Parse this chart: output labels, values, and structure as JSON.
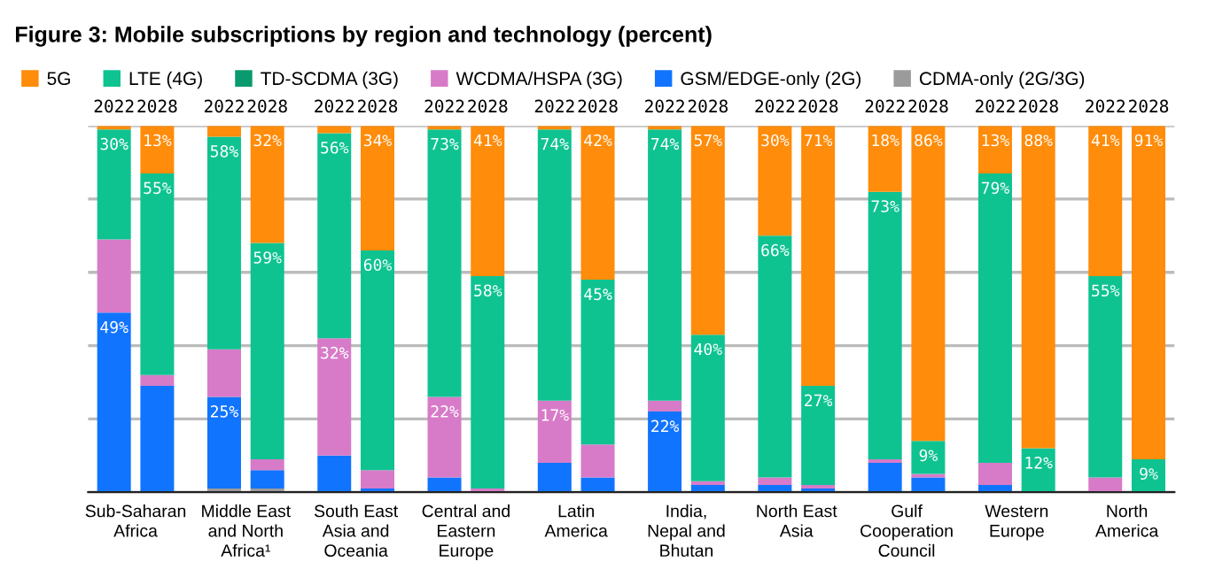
{
  "chart_data": {
    "type": "bar",
    "stacked": true,
    "title": "Figure 3: Mobile subscriptions by region and technology (percent)",
    "categories": [
      "2022",
      "2028",
      "2022",
      "2028",
      "2022",
      "2028",
      "2022",
      "2028",
      "2022",
      "2028",
      "2022",
      "2028",
      "2022",
      "2028",
      "2022",
      "2028",
      "2022",
      "2028",
      "2022",
      "2028"
    ],
    "annotations": [
      "Sub-Saharan\nAfrica",
      "Middle East\nand North\nAfrica¹",
      "South East\nAsia and\nOceania",
      "Central and\nEastern\nEurope",
      "Latin\nAmerica",
      "India,\nNepal and\nBhutan",
      "North East\nAsia",
      "Gulf\nCooperation\nCouncil",
      "Western\nEurope",
      "North\nAmerica"
    ],
    "series": [
      {
        "name": "CDMA-only (2G/3G)",
        "color": "#9b9b9b",
        "values": [
          0,
          0,
          1,
          1,
          0,
          0,
          0,
          0,
          0,
          0,
          0,
          0,
          0,
          0,
          0,
          0,
          0,
          0,
          0,
          0
        ]
      },
      {
        "name": "GSM/EDGE-only (2G)",
        "color": "#1174ff",
        "values": [
          49,
          29,
          25,
          5,
          10,
          1,
          4,
          0,
          8,
          4,
          22,
          2,
          2,
          1,
          8,
          4,
          2,
          0,
          0,
          0
        ],
        "value_labels": [
          "49%",
          null,
          "25%",
          null,
          null,
          null,
          null,
          null,
          null,
          null,
          "22%",
          null,
          null,
          null,
          null,
          null,
          null,
          null,
          null,
          null
        ]
      },
      {
        "name": "WCDMA/HSPA (3G)",
        "color": "#d77bc8",
        "values": [
          20,
          3,
          13,
          3,
          32,
          5,
          22,
          1,
          17,
          9,
          3,
          1,
          2,
          1,
          1,
          1,
          6,
          0,
          4,
          0
        ],
        "value_labels": [
          null,
          null,
          null,
          null,
          "32%",
          null,
          "22%",
          null,
          "17%",
          null,
          null,
          null,
          null,
          null,
          null,
          null,
          null,
          null,
          null,
          null
        ]
      },
      {
        "name": "TD-SCDMA (3G)",
        "color": "#0a9a6e",
        "values": [
          0,
          0,
          0,
          0,
          0,
          0,
          0,
          0,
          0,
          0,
          0,
          0,
          0,
          0,
          0,
          0,
          0,
          0,
          0,
          0
        ]
      },
      {
        "name": "LTE (4G)",
        "color": "#0fc391",
        "values": [
          30,
          55,
          58,
          59,
          56,
          60,
          73,
          58,
          74,
          45,
          74,
          40,
          66,
          27,
          73,
          9,
          79,
          12,
          55,
          9
        ],
        "value_labels": [
          "30%",
          "55%",
          "58%",
          "59%",
          "56%",
          "60%",
          "73%",
          "58%",
          "74%",
          "45%",
          "74%",
          "40%",
          "66%",
          "27%",
          "73%",
          "9%",
          "79%",
          "12%",
          "55%",
          "9%"
        ]
      },
      {
        "name": "5G",
        "color": "#ff8c0a",
        "values": [
          1,
          13,
          3,
          32,
          2,
          34,
          1,
          41,
          1,
          42,
          1,
          57,
          30,
          71,
          18,
          86,
          13,
          88,
          41,
          91
        ],
        "value_labels": [
          null,
          "13%",
          null,
          "32%",
          null,
          "34%",
          null,
          "41%",
          null,
          "42%",
          null,
          "57%",
          "30%",
          "71%",
          "18%",
          "86%",
          "13%",
          "88%",
          "41%",
          "91%"
        ]
      }
    ],
    "ylim": [
      0,
      100
    ],
    "yticks": [
      {
        "value": 0,
        "label": null
      },
      {
        "value": 20,
        "label": null
      },
      {
        "value": 40,
        "label": null
      },
      {
        "value": 60,
        "label": null
      },
      {
        "value": 80,
        "label": null
      },
      {
        "value": 100,
        "label": null
      }
    ],
    "tick_labels": "x",
    "grid": "y",
    "legend": "top left"
  }
}
